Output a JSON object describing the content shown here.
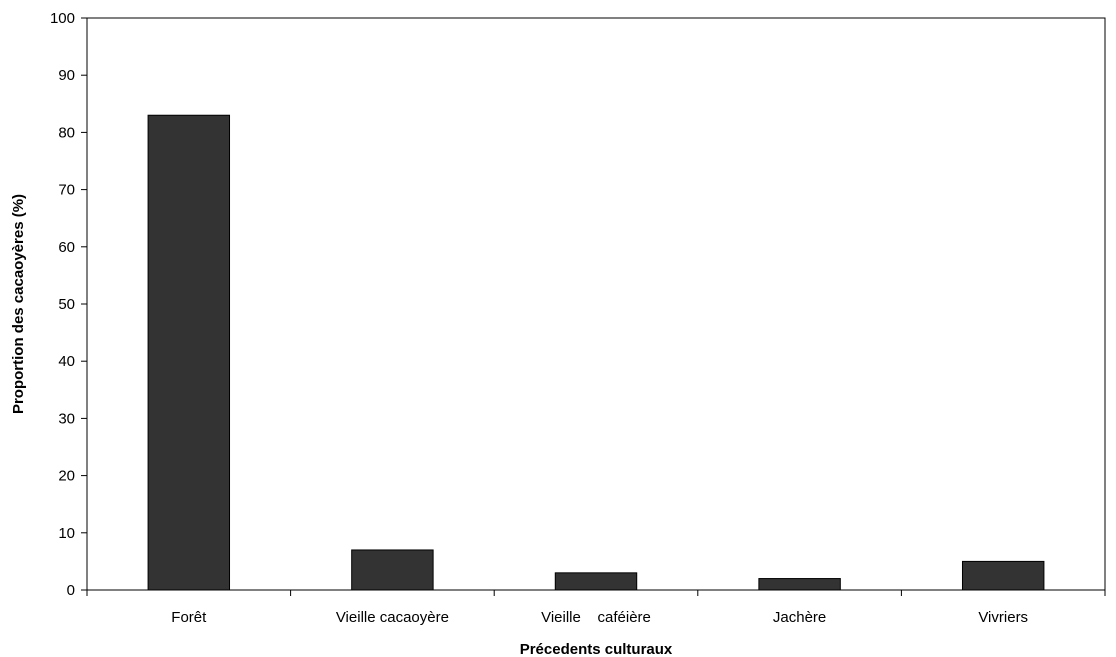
{
  "chart_data": {
    "type": "bar",
    "categories": [
      "Forêt",
      "Vieille cacaoyère",
      "Vieille    caféière",
      "Jachère",
      "Vivriers"
    ],
    "values": [
      83,
      7,
      3,
      2,
      5
    ],
    "xlabel": "Précedents culturaux",
    "ylabel": "Proportion des cacaoyères (%)",
    "ylim": [
      0,
      100
    ],
    "yticks": [
      0,
      10,
      20,
      30,
      40,
      50,
      60,
      70,
      80,
      90,
      100
    ],
    "grid": false,
    "legend": "none",
    "colors": {
      "bar_fill": "#333333",
      "bar_stroke": "#000000",
      "axis": "#000000",
      "background": "#ffffff"
    }
  }
}
